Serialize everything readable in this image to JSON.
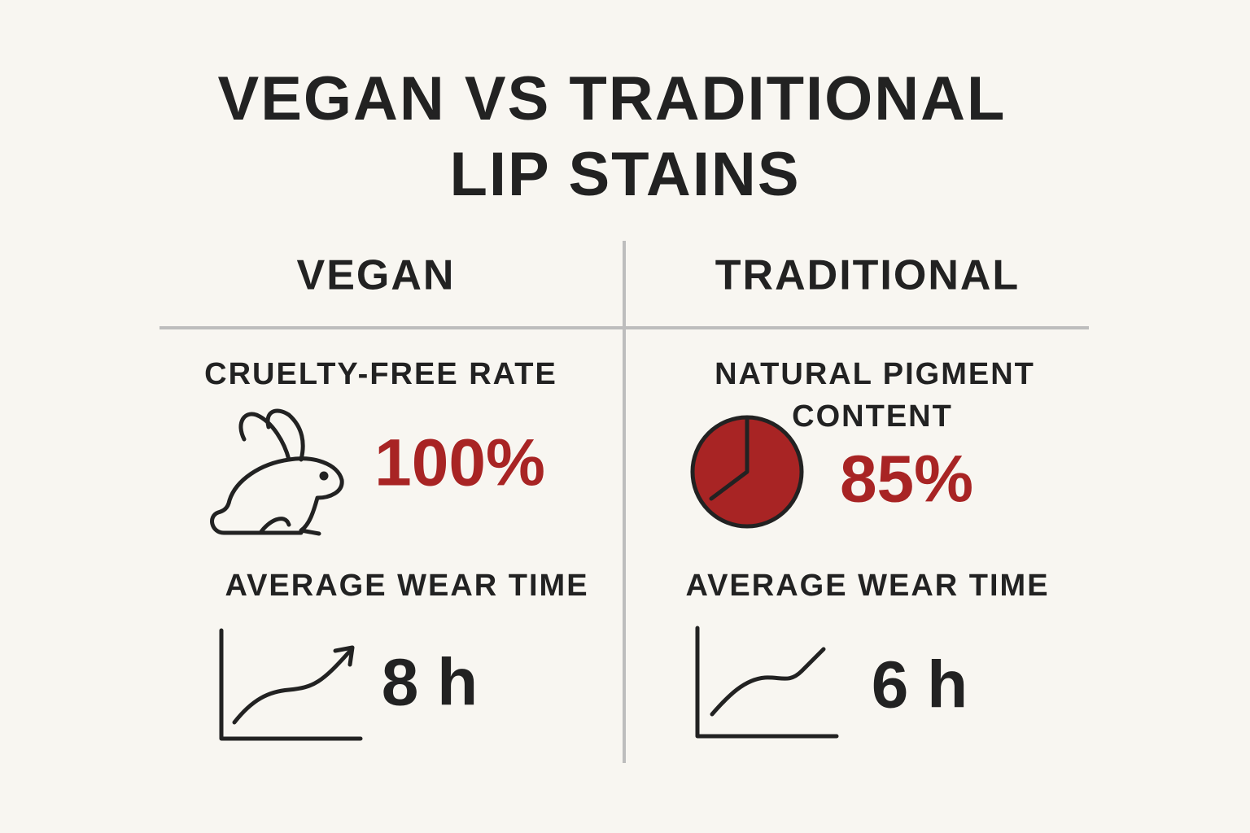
{
  "title_lines": [
    "VEGAN VS TRADITIONAL",
    "LIP STAINS"
  ],
  "columns": [
    {
      "heading": "VEGAN",
      "metrics": [
        {
          "label_lines": [
            "CRUELTY-FREE RATE"
          ],
          "value": "100%"
        },
        {
          "label_lines": [
            "AVERAGE WEAR TIME"
          ],
          "value": "8 h"
        }
      ]
    },
    {
      "heading": "TRADITIONAL",
      "metrics": [
        {
          "label_lines": [
            "NATURAL PIGMENT",
            "CONTENT"
          ],
          "value": "85%"
        },
        {
          "label_lines": [
            "AVERAGE WEAR TIME"
          ],
          "value": "6 h"
        }
      ]
    }
  ]
}
